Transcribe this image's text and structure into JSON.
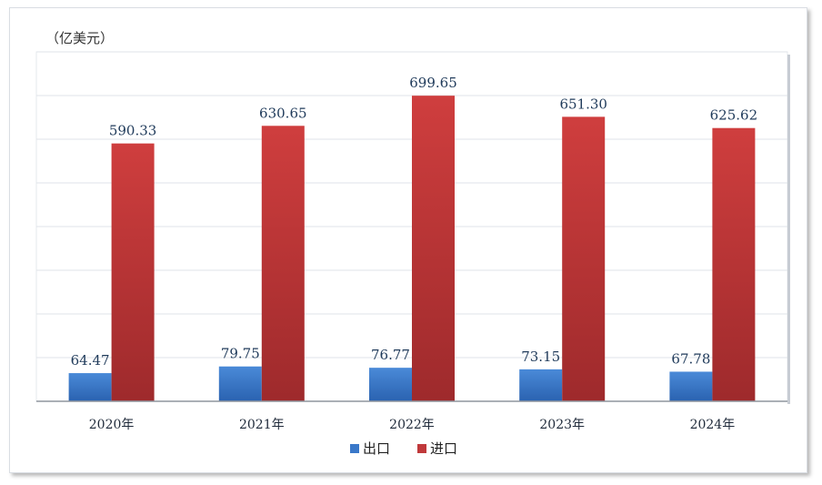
{
  "chart_data": {
    "type": "bar",
    "unit_label": "（亿美元）",
    "categories": [
      "2020年",
      "2021年",
      "2022年",
      "2023年",
      "2024年"
    ],
    "series": [
      {
        "name": "出口",
        "values": [
          64.47,
          79.75,
          76.77,
          73.15,
          67.78
        ],
        "labels": [
          "64.47",
          "79.75",
          "76.77",
          "73.15",
          "67.78"
        ],
        "color": "#3a78c9"
      },
      {
        "name": "进口",
        "values": [
          590.33,
          630.65,
          699.65,
          651.3,
          625.62
        ],
        "labels": [
          "590.33",
          "630.65",
          "699.65",
          "651.30",
          "625.62"
        ],
        "color": "#c0393b"
      }
    ],
    "ylim": [
      0,
      800
    ],
    "y_gridlines": [
      100,
      200,
      300,
      400,
      500,
      600,
      700,
      800
    ],
    "grid": true,
    "legend_position": "bottom"
  }
}
